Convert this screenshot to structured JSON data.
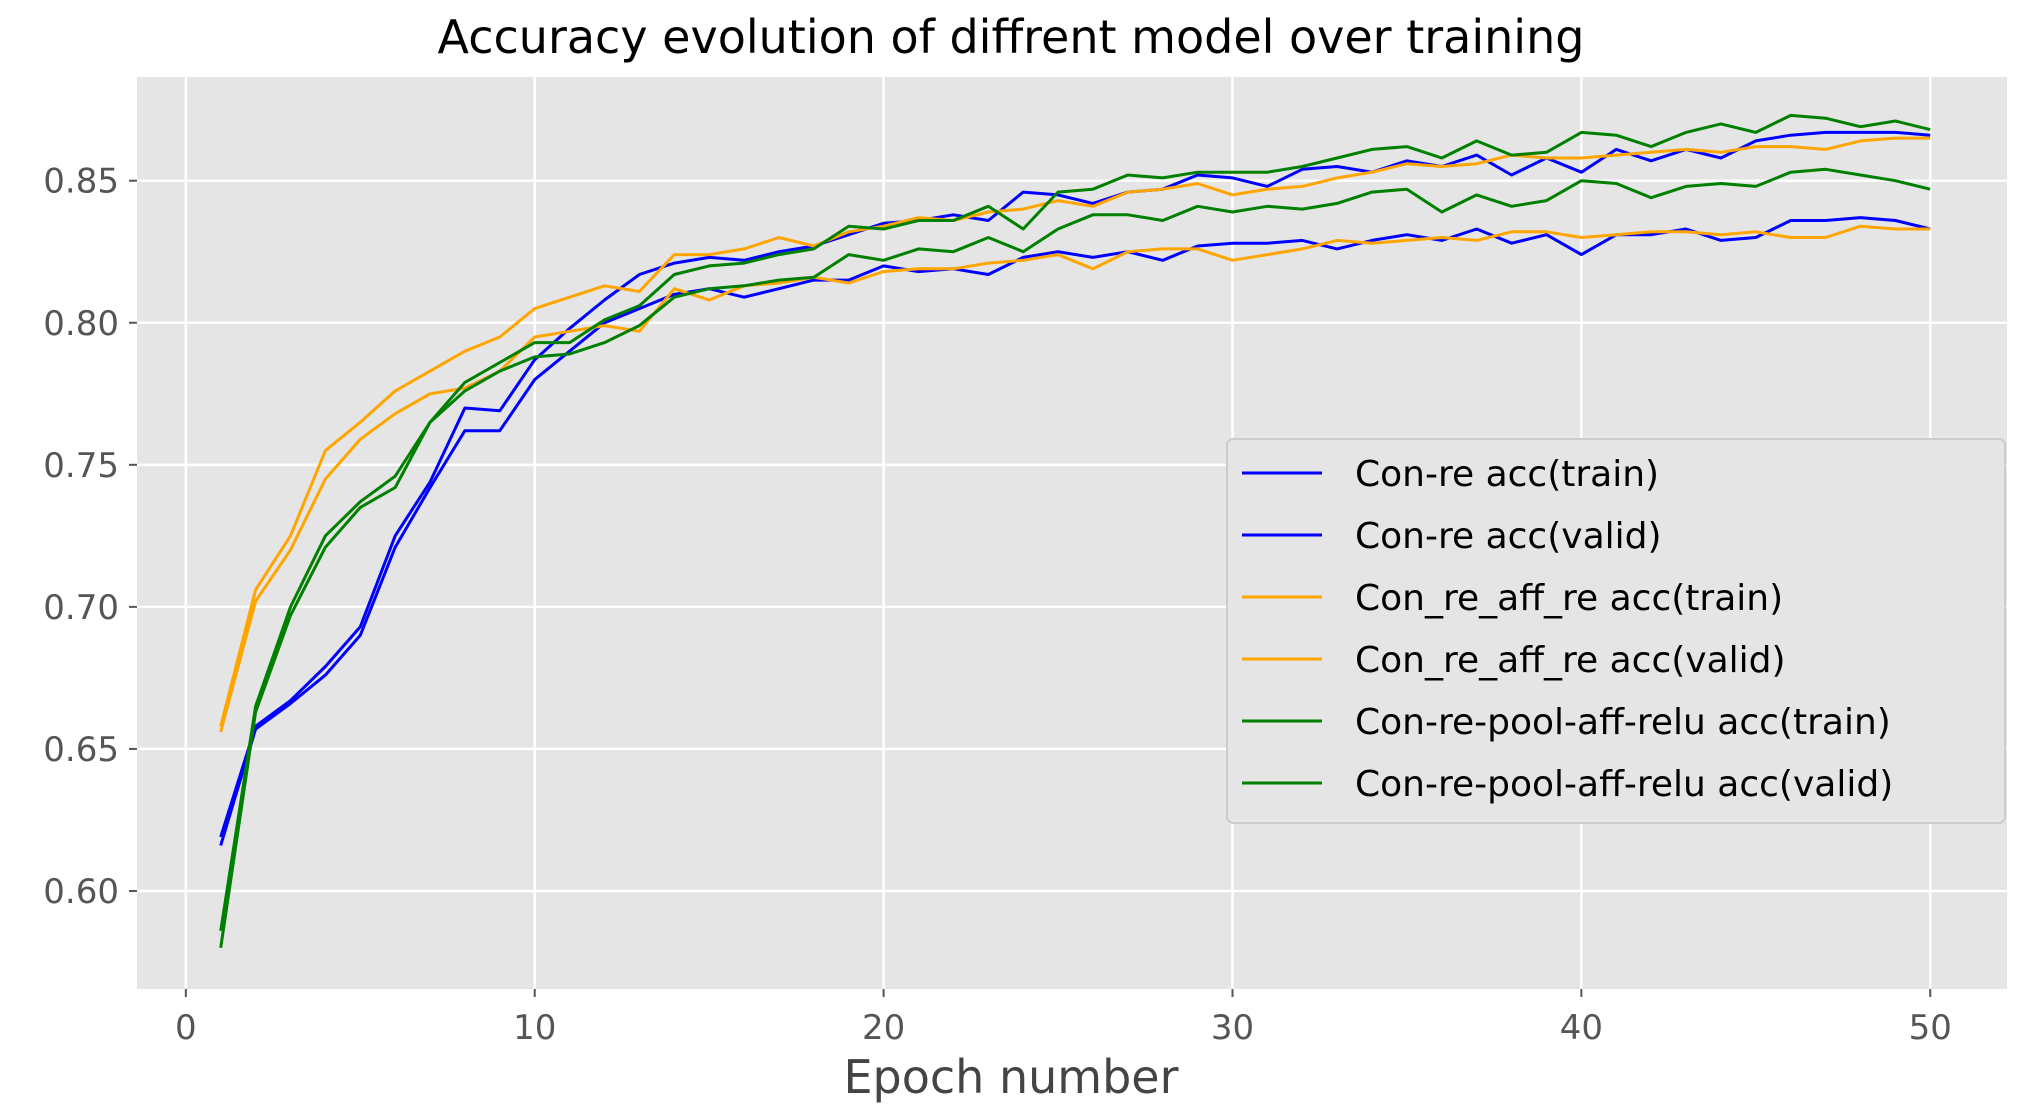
{
  "chart_data": {
    "type": "line",
    "title": "Accuracy evolution of diffrent model over training",
    "xlabel": "Epoch number",
    "ylabel": "",
    "xlim": [
      -1.4,
      52.2
    ],
    "ylim": [
      0.5655,
      0.8865
    ],
    "grid": true,
    "legend_placement": "center-right",
    "xticks": [
      0,
      10,
      20,
      30,
      40,
      50
    ],
    "xtick_labels": [
      "0",
      "10",
      "20",
      "30",
      "40",
      "50"
    ],
    "yticks": [
      0.6,
      0.65,
      0.7,
      0.75,
      0.8,
      0.85
    ],
    "ytick_labels": [
      "0.60",
      "0.65",
      "0.70",
      "0.75",
      "0.80",
      "0.85"
    ],
    "x": [
      1,
      2,
      3,
      4,
      5,
      6,
      7,
      8,
      9,
      10,
      11,
      12,
      13,
      14,
      15,
      16,
      17,
      18,
      19,
      20,
      21,
      22,
      23,
      24,
      25,
      26,
      27,
      28,
      29,
      30,
      31,
      32,
      33,
      34,
      35,
      36,
      37,
      38,
      39,
      40,
      41,
      42,
      43,
      44,
      45,
      46,
      47,
      48,
      49,
      50
    ],
    "series": [
      {
        "name": "Con-re acc(train)",
        "color": "#0000ff",
        "values": [
          0.619,
          0.658,
          0.667,
          0.679,
          0.693,
          0.725,
          0.744,
          0.77,
          0.769,
          0.787,
          0.798,
          0.808,
          0.817,
          0.821,
          0.823,
          0.822,
          0.825,
          0.827,
          0.831,
          0.835,
          0.836,
          0.838,
          0.836,
          0.846,
          0.845,
          0.842,
          0.846,
          0.847,
          0.852,
          0.851,
          0.848,
          0.854,
          0.855,
          0.853,
          0.857,
          0.855,
          0.859,
          0.852,
          0.858,
          0.853,
          0.861,
          0.857,
          0.861,
          0.858,
          0.864,
          0.866,
          0.867,
          0.867,
          0.867,
          0.866
        ]
      },
      {
        "name": "Con-re acc(valid)",
        "color": "#0000ff",
        "values": [
          0.616,
          0.657,
          0.666,
          0.676,
          0.69,
          0.721,
          0.742,
          0.762,
          0.762,
          0.78,
          0.79,
          0.8,
          0.805,
          0.81,
          0.812,
          0.809,
          0.812,
          0.815,
          0.815,
          0.82,
          0.818,
          0.819,
          0.817,
          0.823,
          0.825,
          0.823,
          0.825,
          0.822,
          0.827,
          0.828,
          0.828,
          0.829,
          0.826,
          0.829,
          0.831,
          0.829,
          0.833,
          0.828,
          0.831,
          0.824,
          0.831,
          0.831,
          0.833,
          0.829,
          0.83,
          0.836,
          0.836,
          0.837,
          0.836,
          0.833
        ]
      },
      {
        "name": "Con_re_aff_re acc(train)",
        "color": "#ffa500",
        "values": [
          0.658,
          0.706,
          0.725,
          0.755,
          0.765,
          0.776,
          0.783,
          0.79,
          0.795,
          0.805,
          0.809,
          0.813,
          0.811,
          0.824,
          0.824,
          0.826,
          0.83,
          0.827,
          0.832,
          0.834,
          0.837,
          0.836,
          0.839,
          0.84,
          0.843,
          0.841,
          0.846,
          0.847,
          0.849,
          0.845,
          0.847,
          0.848,
          0.851,
          0.853,
          0.856,
          0.855,
          0.856,
          0.859,
          0.858,
          0.858,
          0.859,
          0.86,
          0.861,
          0.86,
          0.862,
          0.862,
          0.861,
          0.864,
          0.865,
          0.865
        ]
      },
      {
        "name": "Con_re_aff_re acc(valid)",
        "color": "#ffa500",
        "values": [
          0.656,
          0.702,
          0.72,
          0.745,
          0.759,
          0.768,
          0.775,
          0.777,
          0.783,
          0.795,
          0.797,
          0.799,
          0.797,
          0.812,
          0.808,
          0.813,
          0.814,
          0.816,
          0.814,
          0.818,
          0.819,
          0.819,
          0.821,
          0.822,
          0.824,
          0.819,
          0.825,
          0.826,
          0.826,
          0.822,
          0.824,
          0.826,
          0.829,
          0.828,
          0.829,
          0.83,
          0.829,
          0.832,
          0.832,
          0.83,
          0.831,
          0.832,
          0.832,
          0.831,
          0.832,
          0.83,
          0.83,
          0.834,
          0.833,
          0.833
        ]
      },
      {
        "name": "Con-re-pool-aff-relu acc(train)",
        "color": "#008000",
        "values": [
          0.586,
          0.665,
          0.7,
          0.725,
          0.737,
          0.746,
          0.765,
          0.779,
          0.786,
          0.793,
          0.793,
          0.801,
          0.806,
          0.817,
          0.82,
          0.821,
          0.824,
          0.826,
          0.834,
          0.833,
          0.836,
          0.836,
          0.841,
          0.833,
          0.846,
          0.847,
          0.852,
          0.851,
          0.853,
          0.853,
          0.853,
          0.855,
          0.858,
          0.861,
          0.862,
          0.858,
          0.864,
          0.859,
          0.86,
          0.867,
          0.866,
          0.862,
          0.867,
          0.87,
          0.867,
          0.873,
          0.872,
          0.869,
          0.871,
          0.868
        ]
      },
      {
        "name": "Con-re-pool-aff-relu acc(valid)",
        "color": "#008000",
        "values": [
          0.58,
          0.663,
          0.697,
          0.721,
          0.735,
          0.742,
          0.765,
          0.776,
          0.783,
          0.788,
          0.789,
          0.793,
          0.799,
          0.809,
          0.812,
          0.813,
          0.815,
          0.816,
          0.824,
          0.822,
          0.826,
          0.825,
          0.83,
          0.825,
          0.833,
          0.838,
          0.838,
          0.836,
          0.841,
          0.839,
          0.841,
          0.84,
          0.842,
          0.846,
          0.847,
          0.839,
          0.845,
          0.841,
          0.843,
          0.85,
          0.849,
          0.844,
          0.848,
          0.849,
          0.848,
          0.853,
          0.854,
          0.852,
          0.85,
          0.847
        ]
      }
    ]
  }
}
